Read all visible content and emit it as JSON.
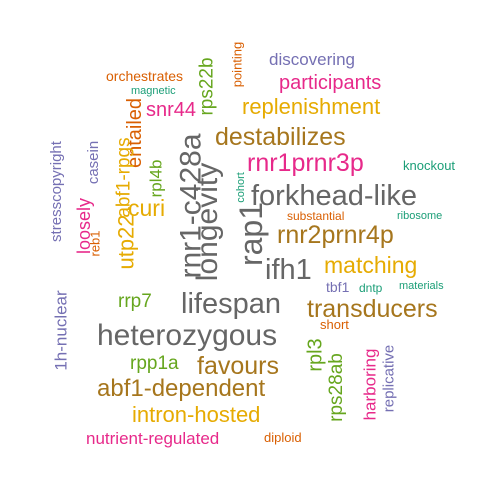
{
  "palette": {
    "teal": "#1b9e77",
    "orange": "#d95f02",
    "purple": "#7570b3",
    "magenta": "#e7298a",
    "green": "#66a61e",
    "gold": "#e6ab02",
    "brown": "#a6761d",
    "gray": "#666666"
  },
  "words": [
    {
      "text": "discovering",
      "color": "purple"
    },
    {
      "text": "orchestrates",
      "color": "orange"
    },
    {
      "text": "magnetic",
      "color": "teal"
    },
    {
      "text": "participants",
      "color": "magenta"
    },
    {
      "text": "pointing",
      "color": "orange"
    },
    {
      "text": "rps22b",
      "color": "green"
    },
    {
      "text": "replenishment",
      "color": "gold"
    },
    {
      "text": "snr44",
      "color": "magenta"
    },
    {
      "text": "entailed",
      "color": "orange"
    },
    {
      "text": "destabilizes",
      "color": "brown"
    },
    {
      "text": "rnr1prnr3p",
      "color": "magenta"
    },
    {
      "text": "knockout",
      "color": "teal"
    },
    {
      "text": "stresscopyright",
      "color": "purple"
    },
    {
      "text": "casein",
      "color": "purple"
    },
    {
      "text": "abf1-rpgs",
      "color": "gold"
    },
    {
      "text": "loosely",
      "color": "magenta"
    },
    {
      "text": "rpl4b",
      "color": "green"
    },
    {
      "text": "rnr1-c428a",
      "color": "gray"
    },
    {
      "text": "longevity",
      "color": "gray"
    },
    {
      "text": "cohort",
      "color": "teal"
    },
    {
      "text": "forkhead-like",
      "color": "gray"
    },
    {
      "text": "curi",
      "color": "gold"
    },
    {
      "text": "substantial",
      "color": "orange"
    },
    {
      "text": "ribosome",
      "color": "teal"
    },
    {
      "text": "rnr2prnr4p",
      "color": "brown"
    },
    {
      "text": "rap1",
      "color": "gray"
    },
    {
      "text": "reb1",
      "color": "orange"
    },
    {
      "text": "utp22",
      "color": "gold"
    },
    {
      "text": "ifh1",
      "color": "gray"
    },
    {
      "text": "matching",
      "color": "gold"
    },
    {
      "text": "tbf1",
      "color": "purple"
    },
    {
      "text": "dntp",
      "color": "teal"
    },
    {
      "text": "materials",
      "color": "teal"
    },
    {
      "text": "1h-nuclear",
      "color": "purple"
    },
    {
      "text": "rrp7",
      "color": "green"
    },
    {
      "text": "lifespan",
      "color": "gray"
    },
    {
      "text": "transducers",
      "color": "brown"
    },
    {
      "text": "short",
      "color": "orange"
    },
    {
      "text": "heterozygous",
      "color": "gray"
    },
    {
      "text": "rpl3",
      "color": "green"
    },
    {
      "text": "rps28ab",
      "color": "green"
    },
    {
      "text": "harboring",
      "color": "magenta"
    },
    {
      "text": "replicative",
      "color": "purple"
    },
    {
      "text": "rpp1a",
      "color": "green"
    },
    {
      "text": "favours",
      "color": "brown"
    },
    {
      "text": "abf1-dependent",
      "color": "brown"
    },
    {
      "text": "intron-hosted",
      "color": "gold"
    },
    {
      "text": "nutrient-regulated",
      "color": "magenta"
    },
    {
      "text": "diploid",
      "color": "orange"
    }
  ]
}
